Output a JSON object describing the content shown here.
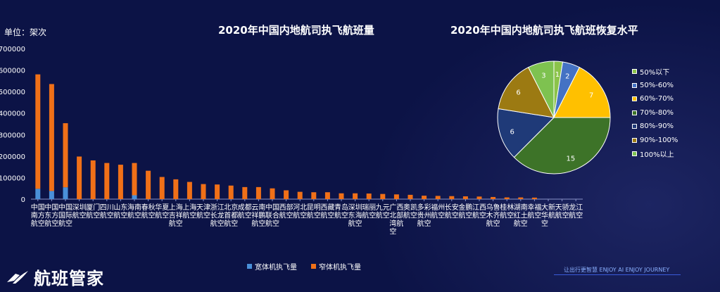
{
  "brand": {
    "name": "航班管家",
    "slogan": "让出行更智慧   ENJOY AI  ENJOY JOURNEY"
  },
  "chart_data": [
    {
      "type": "bar",
      "stacked": true,
      "title": "2020年中国内地航司执飞航班量",
      "ylabel": "单位：架次",
      "ylim": [
        0,
        700000
      ],
      "yticks": [
        0,
        100000,
        200000,
        300000,
        400000,
        500000,
        600000,
        700000
      ],
      "categories": [
        "中国南方航空",
        "中国东方航空",
        "中国国际航空",
        "深圳航空",
        "厦门航空",
        "四川航空",
        "山东航空",
        "海南航空",
        "春秋航空",
        "华夏航空",
        "上海吉祥航空",
        "上海航空",
        "天津航空",
        "浙江长龙航空",
        "北京首都航空",
        "成都航空",
        "云南祥鹏航空",
        "中国联合航空",
        "西部航空",
        "河北航空",
        "昆明航空",
        "西藏航空",
        "青岛航空",
        "深圳东海航空",
        "瑞丽航空",
        "九元航空",
        "广西北部湾航空",
        "奥凯航空",
        "多彩贵州航空",
        "福州航空",
        "长安航空",
        "金鹏航空",
        "江西航空",
        "乌鲁木齐航空",
        "桂林航空",
        "湖南红土航空",
        "幸福航空",
        "大新华航空",
        "天骄航空",
        "龙江航空"
      ],
      "series": [
        {
          "name": "宽体机执飞量",
          "color": "#4a90d9",
          "values": [
            48000,
            38000,
            55000,
            0,
            0,
            0,
            0,
            18000,
            0,
            0,
            0,
            0,
            0,
            0,
            0,
            0,
            0,
            0,
            0,
            0,
            0,
            0,
            0,
            0,
            0,
            0,
            0,
            0,
            0,
            0,
            0,
            0,
            0,
            0,
            0,
            0,
            0,
            0,
            0,
            0
          ]
        },
        {
          "name": "窄体机执飞量",
          "color": "#f07018",
          "values": [
            532000,
            497000,
            298000,
            198000,
            180000,
            168000,
            160000,
            150000,
            132000,
            103000,
            92000,
            80000,
            70000,
            68000,
            63000,
            56000,
            56000,
            50000,
            41000,
            34000,
            32000,
            32000,
            27000,
            27000,
            26000,
            24000,
            22000,
            20000,
            16000,
            15000,
            14000,
            13000,
            12000,
            10000,
            8000,
            8000,
            7000,
            0,
            0,
            0
          ]
        }
      ]
    },
    {
      "type": "pie",
      "title": "2020年中国内地航司执飞航班恢复水平",
      "slices": [
        {
          "label": "50%以下",
          "value": 1,
          "color": "#8bc34a"
        },
        {
          "label": "50%-60%",
          "value": 2,
          "color": "#4472c4"
        },
        {
          "label": "60%-70%",
          "value": 7,
          "color": "#ffc000"
        },
        {
          "label": "70%-80%",
          "value": 15,
          "color": "#3d7328"
        },
        {
          "label": "80%-90%",
          "value": 6,
          "color": "#1f3a78"
        },
        {
          "label": "90%-100%",
          "value": 6,
          "color": "#9c7a12"
        },
        {
          "label": "100%以上",
          "value": 3,
          "color": "#7ec250"
        }
      ],
      "legend_position": "right"
    }
  ]
}
